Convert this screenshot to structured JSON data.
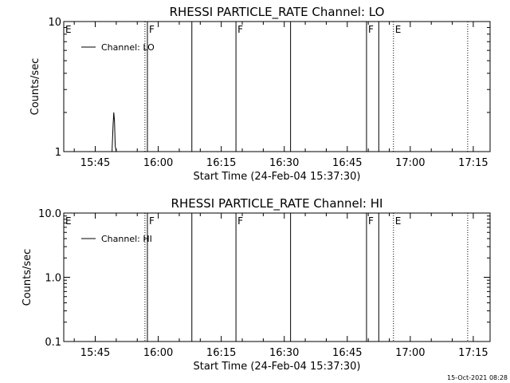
{
  "chart_data": [
    {
      "type": "line",
      "title": "RHESSI PARTICLE_RATE Channel: LO",
      "xlabel": "Start Time (24-Feb-04 15:37:30)",
      "ylabel": "Counts/sec",
      "yscale": "log",
      "ylim": [
        1,
        10
      ],
      "y_tick_labels": [
        "1",
        "10"
      ],
      "x_tick_labels": [
        "15:45",
        "16:00",
        "16:15",
        "16:30",
        "16:45",
        "17:00",
        "17:15"
      ],
      "xlim": [
        "15:37:30",
        "17:19:00"
      ],
      "legend": "top-left",
      "series": [
        {
          "name": "Channel: LO",
          "x": [
            "15:49:00",
            "15:49:15",
            "15:49:25",
            "15:49:35",
            "15:49:45",
            "15:50:00"
          ],
          "y": [
            1.0,
            1.6,
            2.0,
            1.7,
            1.1,
            1.0
          ]
        }
      ],
      "markers": [
        {
          "time": "15:56:50",
          "style": "dotted"
        },
        {
          "time": "15:57:25",
          "style": "solid"
        },
        {
          "time": "16:08:00",
          "style": "solid"
        },
        {
          "time": "16:18:30",
          "style": "solid"
        },
        {
          "time": "16:31:30",
          "style": "solid"
        },
        {
          "time": "16:49:35",
          "style": "solid"
        },
        {
          "time": "16:52:30",
          "style": "solid"
        },
        {
          "time": "16:56:00",
          "style": "dotted"
        },
        {
          "time": "17:13:40",
          "style": "dotted"
        }
      ],
      "flags": [
        {
          "label": "E",
          "time": "15:37:30"
        },
        {
          "label": "F",
          "time": "15:57:25"
        },
        {
          "label": "F",
          "time": "16:18:30"
        },
        {
          "label": "F",
          "time": "16:49:35"
        },
        {
          "label": "E",
          "time": "16:56:00"
        }
      ]
    },
    {
      "type": "line",
      "title": "RHESSI PARTICLE_RATE Channel: HI",
      "xlabel": "Start Time (24-Feb-04 15:37:30)",
      "ylabel": "Counts/sec",
      "yscale": "log",
      "ylim": [
        0.1,
        10
      ],
      "y_tick_labels": [
        "0.1",
        "1.0",
        "10.0"
      ],
      "x_tick_labels": [
        "15:45",
        "16:00",
        "16:15",
        "16:30",
        "16:45",
        "17:00",
        "17:15"
      ],
      "xlim": [
        "15:37:30",
        "17:19:00"
      ],
      "legend": "top-left",
      "series": [
        {
          "name": "Channel: HI",
          "x": [],
          "y": []
        }
      ],
      "markers": [
        {
          "time": "15:56:50",
          "style": "dotted"
        },
        {
          "time": "15:57:25",
          "style": "solid"
        },
        {
          "time": "16:08:00",
          "style": "solid"
        },
        {
          "time": "16:18:30",
          "style": "solid"
        },
        {
          "time": "16:31:30",
          "style": "solid"
        },
        {
          "time": "16:49:35",
          "style": "solid"
        },
        {
          "time": "16:52:30",
          "style": "solid"
        },
        {
          "time": "16:56:00",
          "style": "dotted"
        },
        {
          "time": "17:13:40",
          "style": "dotted"
        }
      ],
      "flags": [
        {
          "label": "E",
          "time": "15:37:30"
        },
        {
          "label": "F",
          "time": "15:57:25"
        },
        {
          "label": "F",
          "time": "16:18:30"
        },
        {
          "label": "F",
          "time": "16:49:35"
        },
        {
          "label": "E",
          "time": "16:56:00"
        }
      ]
    }
  ],
  "footer": {
    "timestamp": "15-Oct-2021 08:28"
  }
}
